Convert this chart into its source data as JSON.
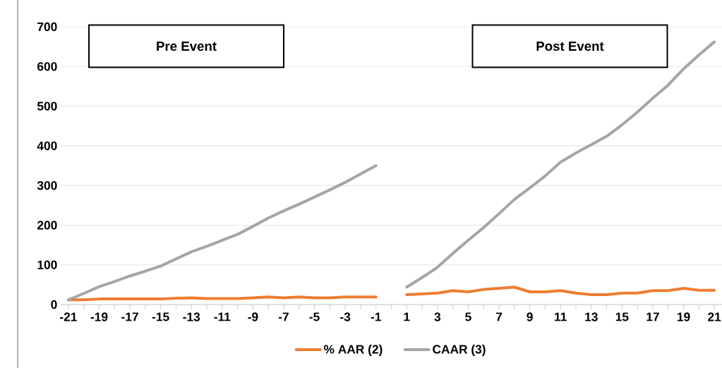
{
  "chart_data": {
    "type": "line",
    "categories": [
      "-21",
      null,
      "-19",
      null,
      "-17",
      null,
      "-15",
      null,
      "-13",
      null,
      "-11",
      null,
      "-9",
      null,
      "-7",
      null,
      "-5",
      null,
      "-3",
      null,
      "-1",
      null,
      "1",
      null,
      "3",
      null,
      "5",
      null,
      "7",
      null,
      "9",
      null,
      "11",
      null,
      "13",
      null,
      "15",
      null,
      "17",
      null,
      "19",
      null,
      "21"
    ],
    "series": [
      {
        "name": "% AAR (2)",
        "color": "#ed7d31",
        "values": [
          12,
          12,
          14,
          14,
          14,
          14,
          14,
          16,
          17,
          15,
          15,
          15,
          17,
          19,
          17,
          19,
          17,
          17,
          19,
          19,
          19,
          null,
          25,
          27,
          29,
          35,
          32,
          38,
          41,
          44,
          32,
          32,
          35,
          29,
          25,
          25,
          29,
          29,
          35,
          35,
          41,
          36,
          36
        ]
      },
      {
        "name": "CAAR (3)",
        "color": "#a5a5a5",
        "values": [
          12,
          28,
          45,
          58,
          72,
          84,
          97,
          115,
          133,
          147,
          162,
          177,
          197,
          218,
          236,
          253,
          271,
          289,
          308,
          329,
          350,
          null,
          44,
          68,
          94,
          129,
          162,
          194,
          229,
          265,
          294,
          324,
          359,
          382,
          403,
          424,
          453,
          485,
          520,
          553,
          594,
          629,
          662
        ]
      }
    ],
    "ylim": [
      0,
      700
    ],
    "yticks": [
      0,
      100,
      200,
      300,
      400,
      500,
      600,
      700
    ],
    "grid": "y",
    "legend": "bottom",
    "marker": "none",
    "line_style": "solid",
    "annotations": [
      "Pre Event",
      "Post Event"
    ]
  }
}
